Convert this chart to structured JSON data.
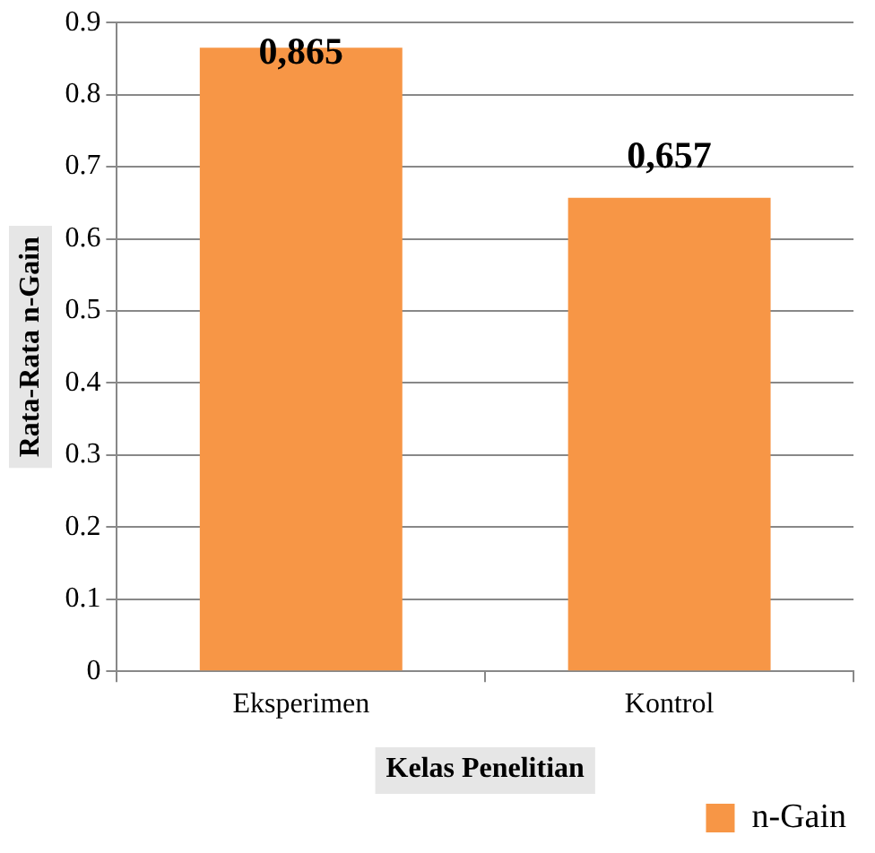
{
  "chart_data": {
    "type": "bar",
    "xlabel": "Kelas Penelitian",
    "ylabel": "Rata-Rata n-Gain",
    "categories": [
      "Eksperimen",
      "Kontrol"
    ],
    "series": [
      {
        "name": "n-Gain",
        "color": "#f79646",
        "values": [
          0.865,
          0.657
        ],
        "value_labels": [
          "0,865",
          "0,657"
        ]
      }
    ],
    "ylim": [
      0,
      0.9
    ],
    "yticks": [
      0,
      0.1,
      0.2,
      0.3,
      0.4,
      0.5,
      0.6,
      0.7,
      0.8,
      0.9
    ],
    "grid": "y",
    "legend": "bottom right"
  }
}
